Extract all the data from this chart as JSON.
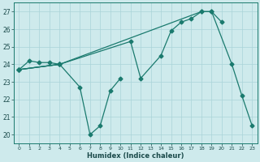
{
  "xlabel": "Humidex (Indice chaleur)",
  "background_color": "#ceeaec",
  "grid_color": "#aad4d8",
  "line_color": "#1a7a6e",
  "xlim": [
    -0.5,
    23.5
  ],
  "ylim": [
    19.5,
    27.5
  ],
  "yticks": [
    20,
    21,
    22,
    23,
    24,
    25,
    26,
    27
  ],
  "xticks": [
    0,
    1,
    2,
    3,
    4,
    5,
    6,
    7,
    8,
    9,
    10,
    11,
    12,
    13,
    14,
    15,
    16,
    17,
    18,
    19,
    20,
    21,
    22,
    23
  ],
  "line1_x": [
    0,
    1,
    2,
    3,
    4
  ],
  "line1_y": [
    23.7,
    24.2,
    24.1,
    24.1,
    24.0
  ],
  "line2_x": [
    0,
    4,
    6,
    7,
    8,
    9,
    10
  ],
  "line2_y": [
    23.7,
    24.0,
    22.7,
    20.0,
    20.5,
    22.5,
    23.2
  ],
  "line3_x": [
    0,
    4,
    18,
    19,
    20
  ],
  "line3_y": [
    23.7,
    24.0,
    27.0,
    27.0,
    26.4
  ],
  "line4_x": [
    0,
    4,
    11,
    12,
    14,
    15,
    16,
    17,
    18,
    19,
    21,
    22,
    23
  ],
  "line4_y": [
    23.7,
    24.0,
    25.3,
    23.2,
    24.5,
    25.9,
    26.4,
    26.6,
    27.0,
    27.0,
    24.0,
    22.2,
    20.5
  ]
}
